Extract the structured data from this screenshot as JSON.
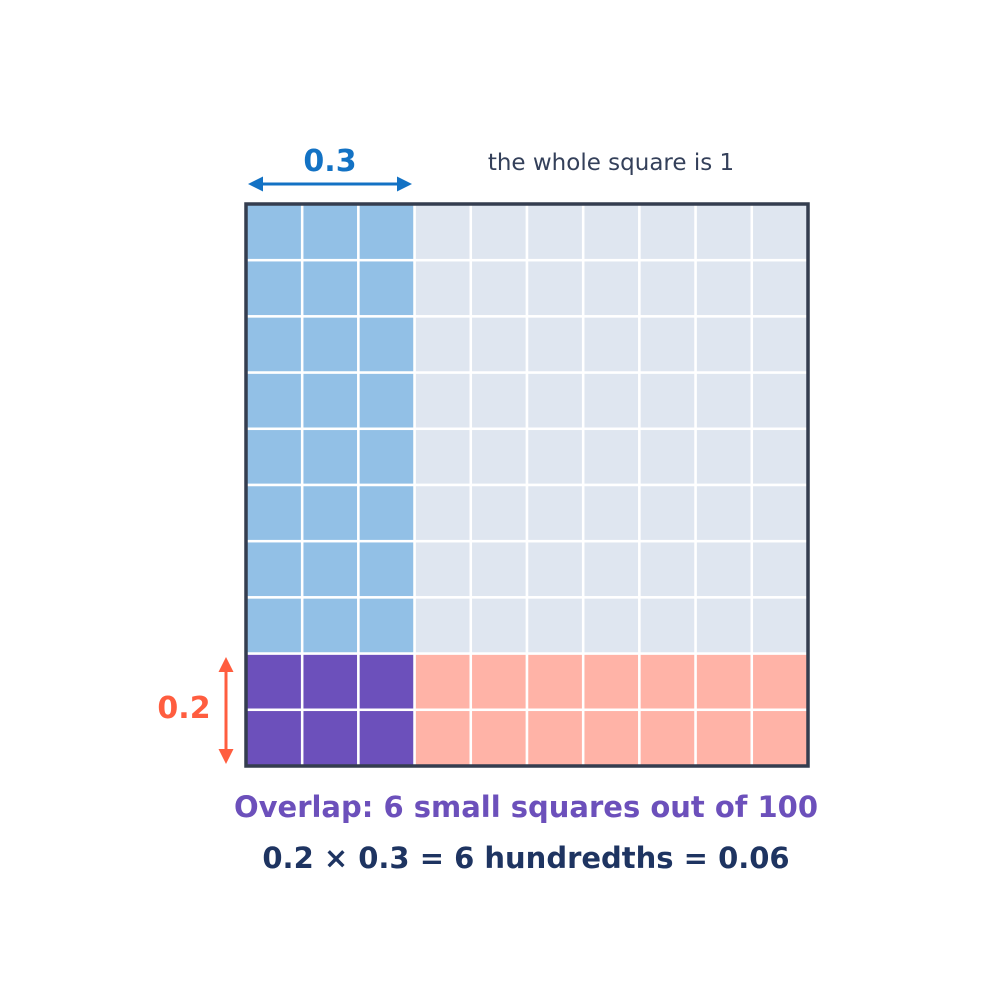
{
  "labels": {
    "width_label": "0.3",
    "height_label": "0.2",
    "whole_note": "the whole square is 1"
  },
  "caption": {
    "line1": "Overlap: 6 small squares out of 100",
    "line2": "0.2 × 0.3 = 6 hundredths = 0.06"
  },
  "grid": {
    "rows": 10,
    "cols": 10,
    "shaded_cols": 3,
    "shaded_rows": 2
  },
  "colors": {
    "background_cell": "#dfe6f0",
    "column_shade": "#92c0e6",
    "row_shade": "#ffb3a7",
    "overlap": "#6c50bb",
    "grid_line": "#ffffff",
    "border": "#343d4f",
    "width_accent": "#1372c4",
    "height_accent": "#ff5d3f",
    "note_text": "#34405a",
    "caption_line1": "#6c50bb",
    "caption_line2": "#1e3461"
  }
}
